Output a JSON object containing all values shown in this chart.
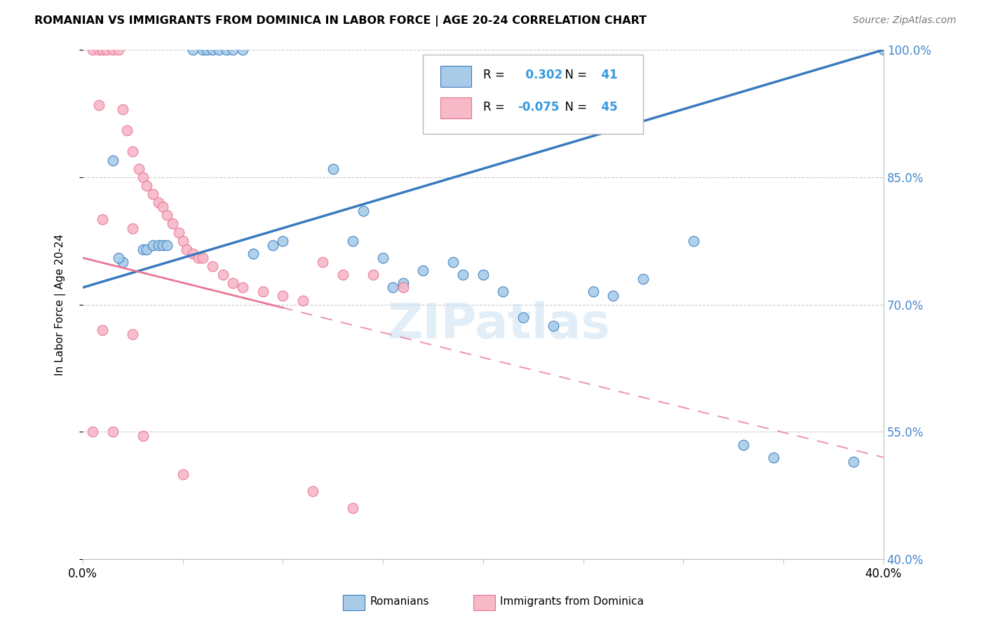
{
  "title": "ROMANIAN VS IMMIGRANTS FROM DOMINICA IN LABOR FORCE | AGE 20-24 CORRELATION CHART",
  "source": "Source: ZipAtlas.com",
  "ylabel": "In Labor Force | Age 20-24",
  "right_yticks": [
    40.0,
    55.0,
    70.0,
    85.0,
    100.0
  ],
  "xmin": 0.0,
  "xmax": 40.0,
  "ymin": 40.0,
  "ymax": 100.0,
  "legend_r_blue": "0.302",
  "legend_n_blue": "41",
  "legend_r_pink": "-0.075",
  "legend_n_pink": "45",
  "blue_color": "#a8cce8",
  "pink_color": "#f7b8c8",
  "blue_line_color": "#3a7abf",
  "pink_line_color": "#e87090",
  "watermark": "ZIPatlas",
  "blue_trend": [
    72.0,
    100.0
  ],
  "pink_trend": [
    75.5,
    52.0
  ],
  "blue_scatter_x": [
    1.5,
    2.0,
    5.5,
    6.0,
    6.2,
    6.5,
    6.8,
    7.2,
    7.5,
    8.0,
    1.8,
    8.5,
    9.5,
    10.0,
    12.5,
    13.5,
    14.0,
    15.0,
    16.0,
    17.0,
    18.5,
    3.0,
    3.2,
    3.5,
    3.8,
    4.0,
    4.2,
    26.5,
    28.0,
    30.5,
    33.0,
    34.5,
    20.0,
    25.5,
    38.5,
    40.0,
    22.0,
    21.0,
    15.5,
    19.0,
    23.5
  ],
  "blue_scatter_y": [
    87.0,
    75.0,
    100.0,
    100.0,
    100.0,
    100.0,
    100.0,
    100.0,
    100.0,
    100.0,
    75.5,
    76.0,
    77.0,
    77.5,
    86.0,
    77.5,
    81.0,
    75.5,
    72.5,
    74.0,
    75.0,
    76.5,
    76.5,
    77.0,
    77.0,
    77.0,
    77.0,
    71.0,
    73.0,
    77.5,
    53.5,
    52.0,
    73.5,
    71.5,
    51.5,
    100.0,
    68.5,
    71.5,
    72.0,
    73.5,
    67.5
  ],
  "pink_scatter_x": [
    0.5,
    0.8,
    1.0,
    1.2,
    1.5,
    1.8,
    2.0,
    2.2,
    2.5,
    2.8,
    3.0,
    3.2,
    3.5,
    3.8,
    4.0,
    4.2,
    4.5,
    4.8,
    5.0,
    5.2,
    5.5,
    5.8,
    6.0,
    6.5,
    7.0,
    7.5,
    8.0,
    9.0,
    10.0,
    11.0,
    12.0,
    13.0,
    0.5,
    0.8,
    1.0,
    1.5,
    2.5,
    3.0,
    5.0,
    11.5,
    13.5,
    1.0,
    2.5,
    14.5,
    16.0
  ],
  "pink_scatter_y": [
    100.0,
    100.0,
    100.0,
    100.0,
    100.0,
    100.0,
    93.0,
    90.5,
    88.0,
    86.0,
    85.0,
    84.0,
    83.0,
    82.0,
    81.5,
    80.5,
    79.5,
    78.5,
    77.5,
    76.5,
    76.0,
    75.5,
    75.5,
    74.5,
    73.5,
    72.5,
    72.0,
    71.5,
    71.0,
    70.5,
    75.0,
    73.5,
    55.0,
    93.5,
    67.0,
    55.0,
    66.5,
    54.5,
    50.0,
    48.0,
    46.0,
    80.0,
    79.0,
    73.5,
    72.0
  ]
}
